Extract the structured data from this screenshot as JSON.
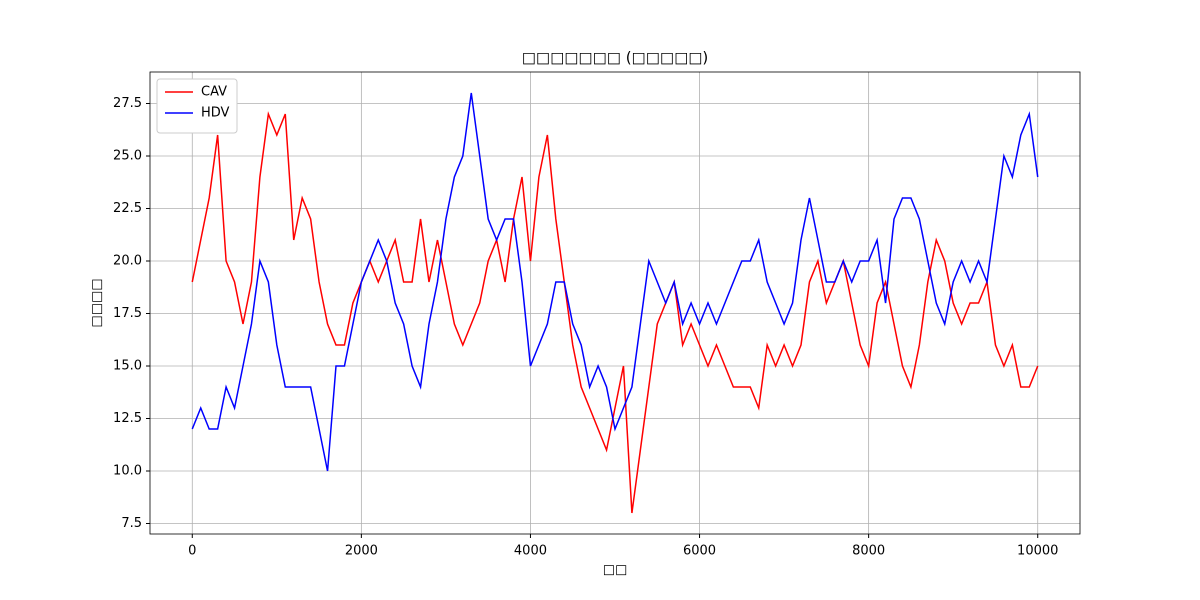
{
  "chart_data": {
    "type": "line",
    "title": "□□□□□□□ (□□□□□)",
    "xlabel": "□□",
    "ylabel": "□□□□",
    "x": [
      0,
      100,
      200,
      300,
      400,
      500,
      600,
      700,
      800,
      900,
      1000,
      1100,
      1200,
      1300,
      1400,
      1500,
      1600,
      1700,
      1800,
      1900,
      2000,
      2100,
      2200,
      2300,
      2400,
      2500,
      2600,
      2700,
      2800,
      2900,
      3000,
      3100,
      3200,
      3300,
      3400,
      3500,
      3600,
      3700,
      3800,
      3900,
      4000,
      4100,
      4200,
      4300,
      4400,
      4500,
      4600,
      4700,
      4800,
      4900,
      5000,
      5100,
      5200,
      5300,
      5400,
      5500,
      5600,
      5700,
      5800,
      5900,
      6000,
      6100,
      6200,
      6300,
      6400,
      6500,
      6600,
      6700,
      6800,
      6900,
      7000,
      7100,
      7200,
      7300,
      7400,
      7500,
      7600,
      7700,
      7800,
      7900,
      8000,
      8100,
      8200,
      8300,
      8400,
      8500,
      8600,
      8700,
      8800,
      8900,
      9000,
      9100,
      9200,
      9300,
      9400,
      9500,
      9600,
      9700,
      9800,
      9900,
      10000
    ],
    "series": [
      {
        "name": "CAV",
        "color": "#ff0000",
        "values": [
          19,
          21,
          23,
          26,
          20,
          19,
          17,
          19,
          24,
          27,
          26,
          27,
          21,
          23,
          22,
          19,
          17,
          16,
          16,
          18,
          19,
          20,
          19,
          20,
          21,
          19,
          19,
          22,
          19,
          21,
          19,
          17,
          16,
          17,
          18,
          20,
          21,
          19,
          22,
          24,
          20,
          24,
          26,
          22,
          19,
          16,
          14,
          13,
          12,
          11,
          13,
          15,
          8,
          11,
          14,
          17,
          18,
          19,
          16,
          17,
          16,
          15,
          16,
          15,
          14,
          14,
          14,
          13,
          16,
          15,
          16,
          15,
          16,
          19,
          20,
          18,
          19,
          20,
          18,
          16,
          15,
          18,
          19,
          17,
          15,
          14,
          16,
          19,
          21,
          20,
          18,
          17,
          18,
          18,
          19,
          16,
          15,
          16,
          14,
          14,
          15
        ]
      },
      {
        "name": "HDV",
        "color": "#0000ff",
        "values": [
          12,
          13,
          12,
          12,
          14,
          13,
          15,
          17,
          20,
          19,
          16,
          14,
          14,
          14,
          14,
          12,
          10,
          15,
          15,
          17,
          19,
          20,
          21,
          20,
          18,
          17,
          15,
          14,
          17,
          19,
          22,
          24,
          25,
          28,
          25,
          22,
          21,
          22,
          22,
          19,
          15,
          16,
          17,
          19,
          19,
          17,
          16,
          14,
          15,
          14,
          12,
          13,
          14,
          17,
          20,
          19,
          18,
          19,
          17,
          18,
          17,
          18,
          17,
          18,
          19,
          20,
          20,
          21,
          19,
          18,
          17,
          18,
          21,
          23,
          21,
          19,
          19,
          20,
          19,
          20,
          20,
          21,
          18,
          22,
          23,
          23,
          22,
          20,
          18,
          17,
          19,
          20,
          19,
          20,
          19,
          22,
          25,
          24,
          26,
          27,
          24
        ]
      }
    ],
    "xlim": [
      -500,
      10500
    ],
    "ylim": [
      7.0,
      29.0
    ],
    "xticks": [
      0,
      2000,
      4000,
      6000,
      8000,
      10000
    ],
    "yticks": [
      {
        "value": 7.5,
        "label": "7.5"
      },
      {
        "value": 10,
        "label": "10.0"
      },
      {
        "value": 12.5,
        "label": "12.5"
      },
      {
        "value": 15,
        "label": "15.0"
      },
      {
        "value": 17.5,
        "label": "17.5"
      },
      {
        "value": 20,
        "label": "20.0"
      },
      {
        "value": 22.5,
        "label": "22.5"
      },
      {
        "value": 25,
        "label": "25.0"
      },
      {
        "value": 27.5,
        "label": "27.5"
      }
    ],
    "grid": true,
    "legend": "upper-left"
  }
}
